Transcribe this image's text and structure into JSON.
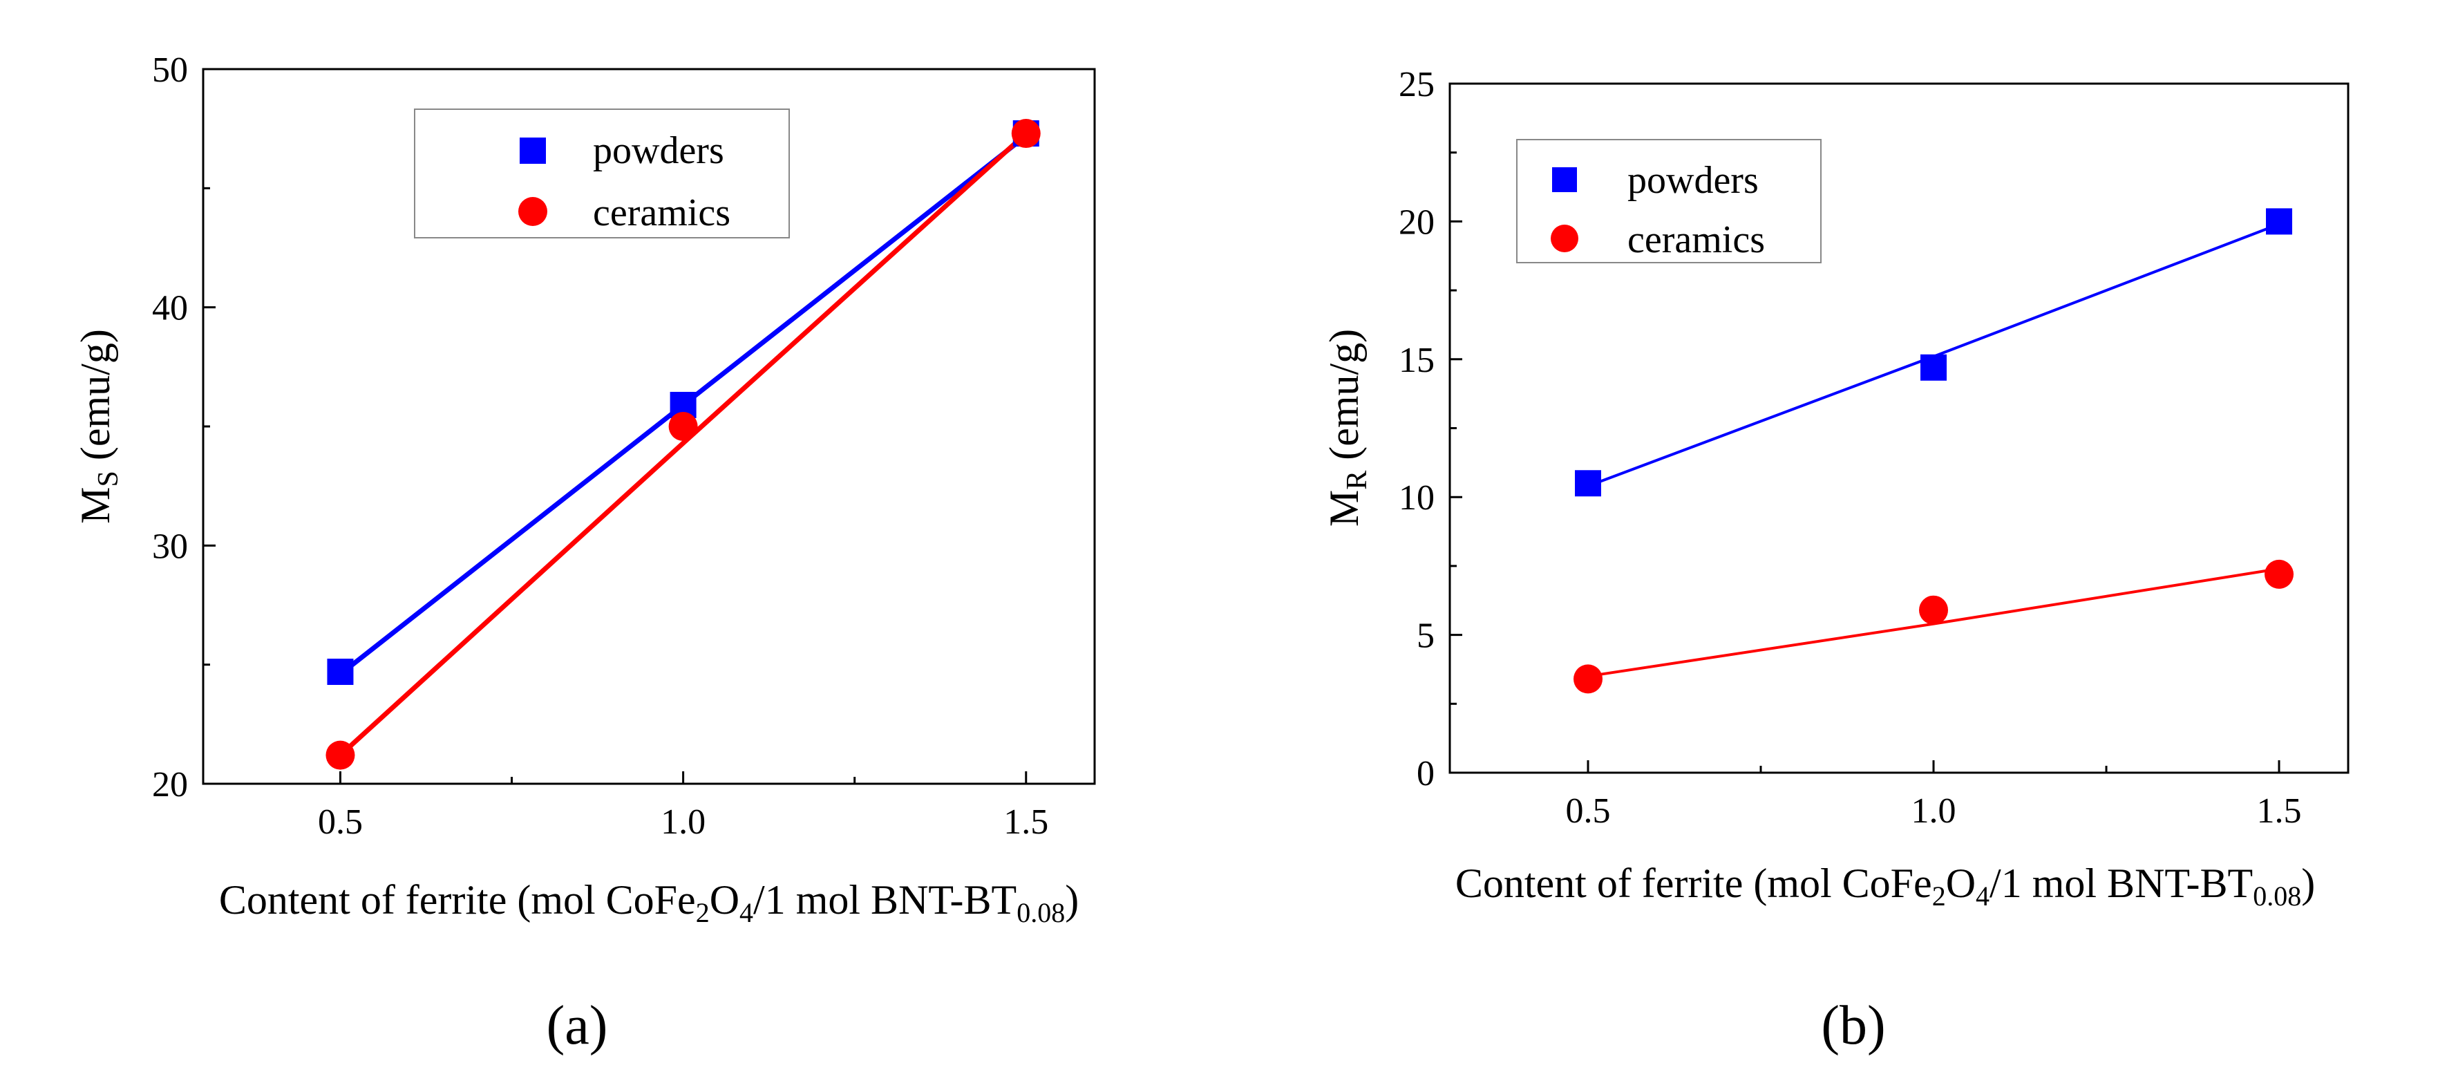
{
  "chart_data": [
    {
      "type": "line",
      "panel_label": "(a)",
      "x": [
        0.5,
        1.0,
        1.5
      ],
      "xticks": [
        "0.5",
        "1.0",
        "1.5"
      ],
      "xlim": [
        0.3,
        1.6
      ],
      "ylim": [
        20,
        50
      ],
      "yticks": [
        "20",
        "30",
        "40",
        "50"
      ],
      "ylabel_main": "M",
      "ylabel_sub": "S",
      "ylabel_unit": " (emu/g)",
      "xlabel": {
        "pre": "Content of ferrite (mol CoFe",
        "sub1": "2",
        "mid1": "O",
        "sub2": "4",
        "mid2": "/1 mol BNT-BT",
        "sub3": "0.08",
        "post": ")"
      },
      "series": [
        {
          "name": "powders",
          "marker": "square",
          "color": "#0000ff",
          "values": [
            24.7,
            35.9,
            47.3
          ],
          "fit": [
            24.6,
            35.9,
            47.2
          ]
        },
        {
          "name": "ceramics",
          "marker": "circle",
          "color": "#ff0000",
          "values": [
            21.2,
            35.0,
            47.3
          ],
          "fit": [
            21.2,
            34.3,
            47.3
          ]
        }
      ],
      "legend_position": "top-center"
    },
    {
      "type": "line",
      "panel_label": "(b)",
      "x": [
        0.5,
        1.0,
        1.5
      ],
      "xticks": [
        "0.5",
        "1.0",
        "1.5"
      ],
      "xlim": [
        0.3,
        1.6
      ],
      "ylim": [
        0,
        25
      ],
      "yticks": [
        "0",
        "5",
        "10",
        "15",
        "20",
        "25"
      ],
      "ylabel_main": "M",
      "ylabel_sub": "R",
      "ylabel_unit": " (emu/g)",
      "xlabel": {
        "pre": "Content of ferrite (mol CoFe",
        "sub1": "2",
        "mid1": "O",
        "sub2": "4",
        "mid2": "/1 mol BNT-BT",
        "sub3": "0.08",
        "post": ")"
      },
      "series": [
        {
          "name": "powders",
          "marker": "square",
          "color": "#0000ff",
          "values": [
            10.5,
            14.7,
            20.0
          ],
          "fit": [
            10.4,
            15.1,
            19.9
          ]
        },
        {
          "name": "ceramics",
          "marker": "circle",
          "color": "#ff0000",
          "values": [
            3.4,
            5.9,
            7.2
          ],
          "fit": [
            3.5,
            5.4,
            7.4
          ]
        }
      ],
      "legend_position": "top-left"
    }
  ]
}
